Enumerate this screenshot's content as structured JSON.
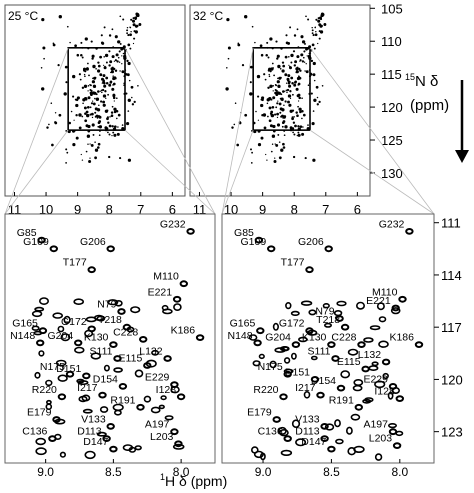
{
  "chart_data": [
    {
      "type": "scatter",
      "panel": "overview",
      "title": "25 °C",
      "x_ticks": [
        "11",
        "10",
        "9",
        "8",
        "7",
        "6"
      ],
      "xlim": [
        11.3,
        5.6
      ],
      "ylim": [
        104.5,
        133.5
      ],
      "zoom_box": {
        "x": [
          9.3,
          7.5
        ],
        "y": [
          111,
          123.5
        ]
      }
    },
    {
      "type": "scatter",
      "panel": "overview",
      "title": "32 °C",
      "x_ticks": [
        "11",
        "10",
        "9",
        "8",
        "7",
        "6"
      ],
      "y_ticks": [
        "105",
        "110",
        "115",
        "120",
        "125",
        "130"
      ],
      "ylabel": "15N δ (ppm)",
      "ylabel_sup": "15",
      "ylabel_main": "N δ",
      "ylabel_unit": "(ppm)",
      "xlim": [
        11.3,
        5.6
      ],
      "ylim": [
        104.5,
        133.5
      ],
      "zoom_box": {
        "x": [
          9.3,
          7.5
        ],
        "y": [
          111,
          123.5
        ]
      }
    },
    {
      "type": "scatter",
      "panel": "zoom-25",
      "x_ticks": [
        "9.0",
        "8.5",
        "8.0"
      ],
      "xlim": [
        9.3,
        7.75
      ],
      "ylim": [
        110.5,
        124.8
      ],
      "peaks": [
        {
          "label": "G85",
          "x": 9.03,
          "y": 112.0
        },
        {
          "label": "G232",
          "x": 7.93,
          "y": 111.5
        },
        {
          "label": "G109",
          "x": 8.94,
          "y": 112.5
        },
        {
          "label": "G206",
          "x": 8.52,
          "y": 112.5
        },
        {
          "label": "T177",
          "x": 8.66,
          "y": 113.7
        },
        {
          "label": "M110",
          "x": 7.98,
          "y": 114.5
        },
        {
          "label": "E221",
          "x": 8.03,
          "y": 115.4
        },
        {
          "label": "N79",
          "x": 8.44,
          "y": 116.1
        },
        {
          "label": "T218",
          "x": 8.4,
          "y": 117.0
        },
        {
          "label": "C228",
          "x": 8.28,
          "y": 117.7
        },
        {
          "label": "G172",
          "x": 8.66,
          "y": 117.1
        },
        {
          "label": "G204",
          "x": 8.76,
          "y": 117.9
        },
        {
          "label": "G165",
          "x": 9.02,
          "y": 117.2
        },
        {
          "label": "K130",
          "x": 8.5,
          "y": 118.0
        },
        {
          "label": "N148",
          "x": 9.04,
          "y": 117.9
        },
        {
          "label": "K186",
          "x": 7.86,
          "y": 117.6
        },
        {
          "label": "S111",
          "x": 8.47,
          "y": 118.8
        },
        {
          "label": "L132",
          "x": 8.1,
          "y": 118.8
        },
        {
          "label": "E115",
          "x": 8.25,
          "y": 119.2
        },
        {
          "label": "N175",
          "x": 8.82,
          "y": 119.7
        },
        {
          "label": "D151",
          "x": 8.7,
          "y": 119.8
        },
        {
          "label": "D154",
          "x": 8.43,
          "y": 120.4
        },
        {
          "label": "E229",
          "x": 8.05,
          "y": 120.3
        },
        {
          "label": "I217",
          "x": 8.58,
          "y": 120.9
        },
        {
          "label": "I128",
          "x": 8.0,
          "y": 121.0
        },
        {
          "label": "R220",
          "x": 8.88,
          "y": 121.0
        },
        {
          "label": "R191",
          "x": 8.3,
          "y": 121.6
        },
        {
          "label": "E179",
          "x": 8.92,
          "y": 122.3
        },
        {
          "label": "V133",
          "x": 8.52,
          "y": 122.7
        },
        {
          "label": "A197",
          "x": 8.05,
          "y": 123.0
        },
        {
          "label": "C136",
          "x": 8.95,
          "y": 123.4
        },
        {
          "label": "D113",
          "x": 8.55,
          "y": 123.4
        },
        {
          "label": "D147",
          "x": 8.5,
          "y": 124.0
        },
        {
          "label": "L203",
          "x": 8.02,
          "y": 123.7
        }
      ]
    },
    {
      "type": "scatter",
      "panel": "zoom-32",
      "x_ticks": [
        "9.0",
        "8.5",
        "8.0"
      ],
      "y_ticks": [
        "111",
        "114",
        "117",
        "120",
        "123"
      ],
      "xlabel": "1H δ (ppm)",
      "xlabel_sup": "1",
      "xlabel_main": "H δ (ppm)",
      "xlim": [
        9.3,
        7.75
      ],
      "ylim": [
        110.5,
        124.8
      ],
      "peaks": [
        {
          "label": "G85",
          "x": 9.03,
          "y": 112.0
        },
        {
          "label": "G232",
          "x": 7.93,
          "y": 111.5
        },
        {
          "label": "G109",
          "x": 8.94,
          "y": 112.5
        },
        {
          "label": "G206",
          "x": 8.52,
          "y": 112.5
        },
        {
          "label": "T177",
          "x": 8.66,
          "y": 113.7
        },
        {
          "label": "M110",
          "x": 7.98,
          "y": 115.4
        },
        {
          "label": "E221",
          "x": 8.03,
          "y": 115.9
        },
        {
          "label": "N79",
          "x": 8.44,
          "y": 116.5
        },
        {
          "label": "T218",
          "x": 8.4,
          "y": 117.0
        },
        {
          "label": "C228",
          "x": 8.28,
          "y": 118.0
        },
        {
          "label": "G172",
          "x": 8.66,
          "y": 117.2
        },
        {
          "label": "G204",
          "x": 8.76,
          "y": 118.0
        },
        {
          "label": "G165",
          "x": 9.02,
          "y": 117.2
        },
        {
          "label": "K130",
          "x": 8.5,
          "y": 118.0
        },
        {
          "label": "N148",
          "x": 9.04,
          "y": 117.9
        },
        {
          "label": "K186",
          "x": 7.86,
          "y": 118.0
        },
        {
          "label": "S111",
          "x": 8.47,
          "y": 118.8
        },
        {
          "label": "L132",
          "x": 8.1,
          "y": 119.0
        },
        {
          "label": "E115",
          "x": 8.25,
          "y": 119.4
        },
        {
          "label": "N175",
          "x": 8.82,
          "y": 119.7
        },
        {
          "label": "D151",
          "x": 8.62,
          "y": 120.0
        },
        {
          "label": "D154",
          "x": 8.43,
          "y": 120.5
        },
        {
          "label": "E229",
          "x": 8.05,
          "y": 120.4
        },
        {
          "label": "I217",
          "x": 8.58,
          "y": 120.9
        },
        {
          "label": "I128",
          "x": 8.0,
          "y": 121.1
        },
        {
          "label": "R220",
          "x": 8.85,
          "y": 121.0
        },
        {
          "label": "R191",
          "x": 8.3,
          "y": 121.6
        },
        {
          "label": "E179",
          "x": 8.9,
          "y": 122.3
        },
        {
          "label": "V133",
          "x": 8.55,
          "y": 122.7
        },
        {
          "label": "A197",
          "x": 8.05,
          "y": 123.0
        },
        {
          "label": "C136",
          "x": 8.82,
          "y": 123.4
        },
        {
          "label": "D113",
          "x": 8.55,
          "y": 123.4
        },
        {
          "label": "D147",
          "x": 8.5,
          "y": 124.0
        },
        {
          "label": "L203",
          "x": 8.02,
          "y": 123.8
        }
      ]
    }
  ]
}
